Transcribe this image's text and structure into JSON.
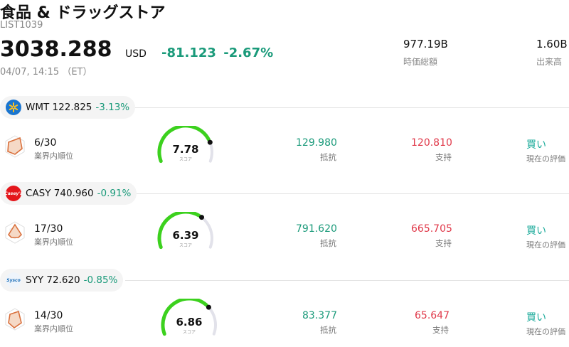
{
  "header": {
    "title": "食品 & ドラッグストア",
    "code": "LIST1039",
    "price": "3038.288",
    "currency": "USD",
    "change": "-81.123",
    "change_pct": "-2.67%",
    "timestamp": "04/07, 14:15 （ET）"
  },
  "stats": [
    {
      "value": "977.19B",
      "label": "時価総額"
    },
    {
      "value": "1.60B",
      "label": "出来高"
    }
  ],
  "colors": {
    "green": "#1a9a7a",
    "red": "#e0394a",
    "gauge": "#3cd11e",
    "rating": "#1aaa9a"
  },
  "stocks": [
    {
      "ticker": "WMT",
      "price": "122.825",
      "change_pct": "-3.13%",
      "logo_icon": "walmart-spark-icon",
      "rank": "6/30",
      "rank_label": "業界内順位",
      "score": "7.78",
      "score_level": 0.778,
      "score_label": "スコア",
      "resistance": "129.980",
      "resistance_label": "抵抗",
      "support": "120.810",
      "support_label": "支持",
      "rating": "買い",
      "rating_label": "現在の評価"
    },
    {
      "ticker": "CASY",
      "price": "740.960",
      "change_pct": "-0.91%",
      "logo_icon": "caseys-logo-icon",
      "logo_text": "Casey's",
      "rank": "17/30",
      "rank_label": "業界内順位",
      "score": "6.39",
      "score_level": 0.639,
      "score_label": "スコア",
      "resistance": "791.620",
      "resistance_label": "抵抗",
      "support": "665.705",
      "support_label": "支持",
      "rating": "買い",
      "rating_label": "現在の評価"
    },
    {
      "ticker": "SYY",
      "price": "72.620",
      "change_pct": "-0.85%",
      "logo_icon": "sysco-logo-icon",
      "logo_text": "Sysco",
      "rank": "14/30",
      "rank_label": "業界内順位",
      "score": "6.86",
      "score_level": 0.686,
      "score_label": "スコア",
      "resistance": "83.377",
      "resistance_label": "抵抗",
      "support": "65.647",
      "support_label": "支持",
      "rating": "買い",
      "rating_label": "現在の評価"
    }
  ]
}
